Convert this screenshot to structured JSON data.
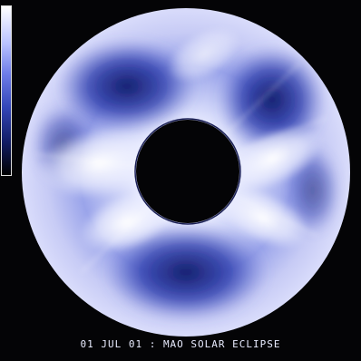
{
  "caption": "01 JUL 01 : MAO SOLAR ECLIPSE",
  "colors": {
    "background": "#040406",
    "outer_halo": "#bfc5f5",
    "dark_blue": "#1e2c9c",
    "streamer_white": "#f4f6ff",
    "occulting_disk": "#040406"
  },
  "elements": {
    "colorbar": "intensity-colorbar",
    "image": "coronagraph-image"
  }
}
